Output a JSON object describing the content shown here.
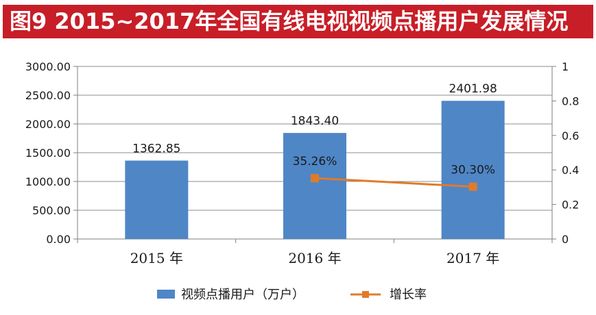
{
  "title": "图9  2015~2017年全国有线电视视频点播用户发展情况",
  "colors": {
    "title_bg": "#c81e28",
    "bar": "#4f86c6",
    "line": "#e07b2a"
  },
  "legend": {
    "bar_label": "视频点播用户（万户）",
    "line_label": "增长率"
  },
  "chart_data": {
    "type": "bar",
    "categories": [
      "2015 年",
      "2016 年",
      "2017 年"
    ],
    "series": [
      {
        "name": "视频点播用户（万户）",
        "type": "bar",
        "axis": "left",
        "values": [
          1362.85,
          1843.4,
          2401.98
        ],
        "labels": [
          "1362.85",
          "1843.40",
          "2401.98"
        ]
      },
      {
        "name": "增长率",
        "type": "line",
        "axis": "right",
        "values": [
          null,
          0.3526,
          0.303
        ],
        "labels": [
          "",
          "35.26%",
          "30.30%"
        ]
      }
    ],
    "y_left": {
      "min": 0,
      "max": 3000,
      "ticks": [
        "0.00",
        "500.00",
        "1000.00",
        "1500.00",
        "2000.00",
        "2500.00",
        "3000.00"
      ]
    },
    "y_right": {
      "min": 0,
      "max": 1,
      "ticks": [
        "0",
        "0.2",
        "0.4",
        "0.6",
        "0.8",
        "1"
      ]
    },
    "grid": true,
    "legend_position": "bottom"
  }
}
